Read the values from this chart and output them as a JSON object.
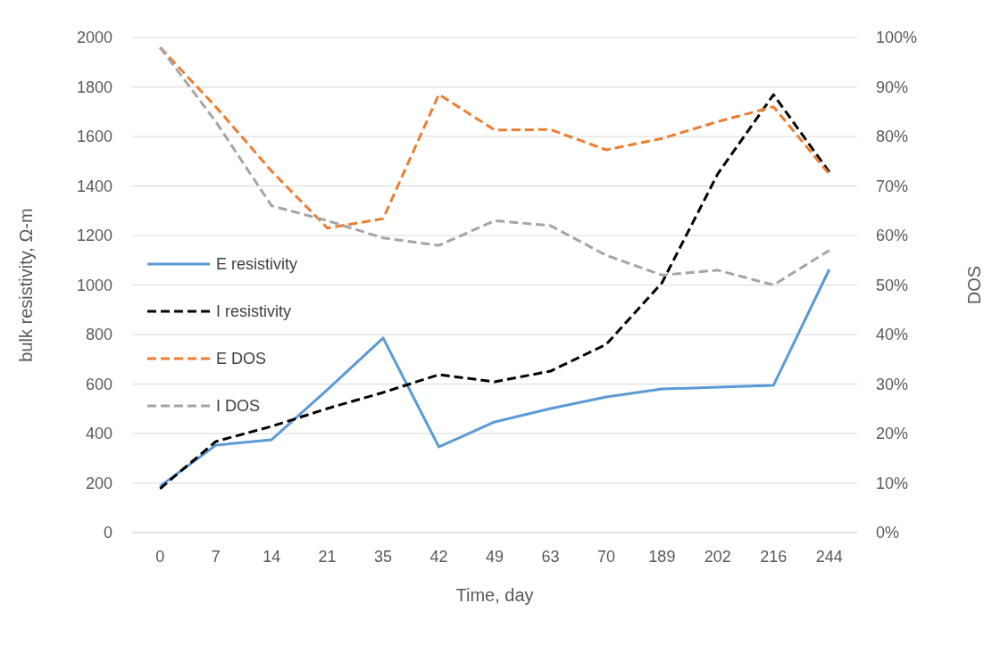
{
  "chart_data": {
    "type": "line",
    "xlabel": "Time, day",
    "ylabel": "bulk resistivity, Ω-m",
    "y2label": "DOS",
    "categories": [
      "0",
      "7",
      "14",
      "21",
      "35",
      "42",
      "49",
      "63",
      "70",
      "189",
      "202",
      "216",
      "244"
    ],
    "ylim": [
      0,
      2000
    ],
    "yticks": [
      0,
      200,
      400,
      600,
      800,
      1000,
      1200,
      1400,
      1600,
      1800,
      2000
    ],
    "y2lim": [
      0,
      100
    ],
    "y2ticks": [
      {
        "value": 0,
        "label": "0%"
      },
      {
        "value": 10,
        "label": "10%"
      },
      {
        "value": 20,
        "label": "20%"
      },
      {
        "value": 30,
        "label": "30%"
      },
      {
        "value": 40,
        "label": "40%"
      },
      {
        "value": 50,
        "label": "50%"
      },
      {
        "value": 60,
        "label": "60%"
      },
      {
        "value": 70,
        "label": "70%"
      },
      {
        "value": 80,
        "label": "80%"
      },
      {
        "value": 90,
        "label": "90%"
      },
      {
        "value": 100,
        "label": "100%"
      }
    ],
    "grid": "y",
    "legend": "left",
    "series": [
      {
        "name": "E resistivity",
        "color": "#5b9bd5",
        "line_style": "solid",
        "values": [
          187,
          353,
          375,
          577,
          786,
          346,
          447,
          501,
          548,
          580,
          587,
          595,
          1063
        ]
      },
      {
        "name": "I resistivity",
        "color": "#000000",
        "line_style": "dashed",
        "values": [
          177,
          368,
          429,
          501,
          566,
          638,
          609,
          652,
          760,
          1009,
          1449,
          1769,
          1456
        ]
      },
      {
        "name": "E DOS",
        "color": "#ed7d31",
        "line_style": "dashed",
        "axis": "y2",
        "values": [
          98,
          86,
          73,
          61.5,
          63.4,
          88.5,
          81.3,
          81.4,
          77.3,
          79.6,
          83,
          86,
          72.4
        ]
      },
      {
        "name": "I DOS",
        "color": "#a5a5a5",
        "line_style": "dashed",
        "axis": "y2",
        "values": [
          98,
          83,
          66,
          63,
          59.5,
          58,
          63,
          62,
          56,
          52,
          53,
          50,
          57
        ]
      }
    ]
  }
}
